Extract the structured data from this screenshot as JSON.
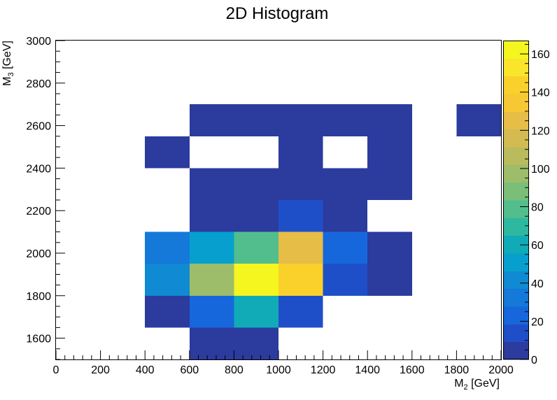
{
  "chart_data": {
    "type": "heatmap",
    "title": "2D Histogram",
    "xlabel": {
      "main": "M",
      "sub": "2",
      "unit": " [GeV]"
    },
    "ylabel": {
      "main": "M",
      "sub": "3",
      "unit": " [GeV]"
    },
    "xlim": [
      0,
      2000
    ],
    "ylim": [
      1500,
      3000
    ],
    "x_bin_edges": [
      0,
      200,
      400,
      600,
      800,
      1000,
      1200,
      1400,
      1600,
      1800,
      2000
    ],
    "y_bin_edges": [
      1500,
      1650,
      1800,
      1950,
      2100,
      2250,
      2400,
      2550,
      2700,
      2850,
      3000
    ],
    "x_ticks": [
      0,
      200,
      400,
      600,
      800,
      1000,
      1200,
      1400,
      1600,
      1800,
      2000
    ],
    "y_ticks": [
      1600,
      1800,
      2000,
      2200,
      2400,
      2600,
      2800,
      3000
    ],
    "colorbar": {
      "min": 0,
      "max": 167,
      "ticks": [
        0,
        20,
        40,
        60,
        80,
        100,
        120,
        140,
        160
      ]
    },
    "palette": [
      "#2b3b9e",
      "#1f4fc8",
      "#1767dc",
      "#1479d8",
      "#0f8ad3",
      "#07a0ce",
      "#11abb7",
      "#2fb8a0",
      "#52bd8d",
      "#7abe77",
      "#9dbd6a",
      "#b9bb5d",
      "#d3bb52",
      "#e5bd47",
      "#f7c833",
      "#fad12a",
      "#fbe52a",
      "#f5f51f"
    ],
    "bins": [
      {
        "x": 700,
        "y": 1575,
        "value": 2
      },
      {
        "x": 900,
        "y": 1575,
        "value": 3
      },
      {
        "x": 500,
        "y": 1725,
        "value": 4
      },
      {
        "x": 700,
        "y": 1725,
        "value": 27
      },
      {
        "x": 900,
        "y": 1725,
        "value": 58
      },
      {
        "x": 1100,
        "y": 1725,
        "value": 17
      },
      {
        "x": 500,
        "y": 1875,
        "value": 40
      },
      {
        "x": 700,
        "y": 1875,
        "value": 96
      },
      {
        "x": 900,
        "y": 1875,
        "value": 165
      },
      {
        "x": 1100,
        "y": 1875,
        "value": 148
      },
      {
        "x": 1300,
        "y": 1875,
        "value": 18
      },
      {
        "x": 1500,
        "y": 1875,
        "value": 6
      },
      {
        "x": 500,
        "y": 2025,
        "value": 30
      },
      {
        "x": 700,
        "y": 2025,
        "value": 50
      },
      {
        "x": 900,
        "y": 2025,
        "value": 78
      },
      {
        "x": 1100,
        "y": 2025,
        "value": 128
      },
      {
        "x": 1300,
        "y": 2025,
        "value": 27
      },
      {
        "x": 1500,
        "y": 2025,
        "value": 5
      },
      {
        "x": 700,
        "y": 2175,
        "value": 4
      },
      {
        "x": 900,
        "y": 2175,
        "value": 3
      },
      {
        "x": 1100,
        "y": 2175,
        "value": 15
      },
      {
        "x": 1300,
        "y": 2175,
        "value": 4
      },
      {
        "x": 700,
        "y": 2325,
        "value": 3
      },
      {
        "x": 900,
        "y": 2325,
        "value": 3
      },
      {
        "x": 1100,
        "y": 2325,
        "value": 2
      },
      {
        "x": 1300,
        "y": 2325,
        "value": 3
      },
      {
        "x": 1500,
        "y": 2325,
        "value": 2
      },
      {
        "x": 500,
        "y": 2475,
        "value": 2
      },
      {
        "x": 1100,
        "y": 2475,
        "value": 1
      },
      {
        "x": 1500,
        "y": 2475,
        "value": 2
      },
      {
        "x": 700,
        "y": 2625,
        "value": 1
      },
      {
        "x": 900,
        "y": 2625,
        "value": 2
      },
      {
        "x": 1100,
        "y": 2625,
        "value": 3
      },
      {
        "x": 1300,
        "y": 2625,
        "value": 1
      },
      {
        "x": 1500,
        "y": 2625,
        "value": 2
      },
      {
        "x": 1900,
        "y": 2625,
        "value": 1
      }
    ]
  }
}
